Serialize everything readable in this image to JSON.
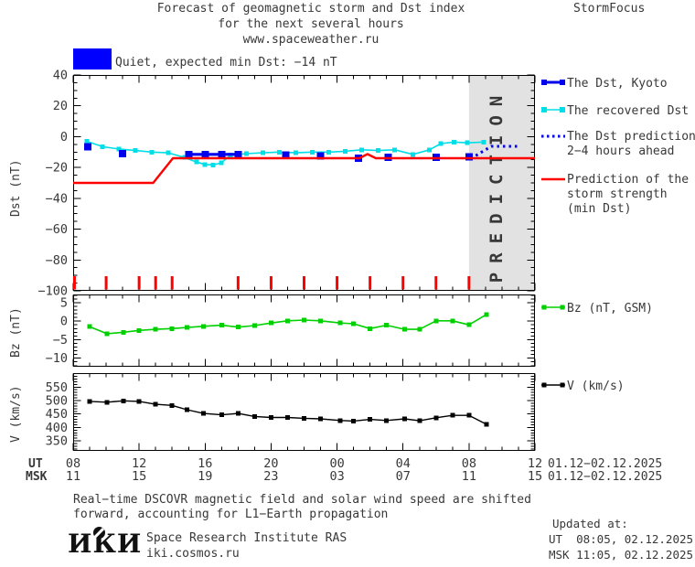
{
  "header": {
    "title_line1": "Forecast of geomagnetic storm and Dst index",
    "title_line2": "for the next several hours",
    "title_line3": "www.spaceweather.ru",
    "brand": "StormFocus"
  },
  "status": {
    "label": "Quiet, expected min Dst: −14 nT",
    "box_color": "#0000ff"
  },
  "legend_main": [
    {
      "label": "The Dst, Kyoto",
      "color": "#0000ee",
      "style": "line-squares"
    },
    {
      "label": "The recovered Dst",
      "color": "#00dfe8",
      "style": "line-squares"
    },
    {
      "label": "The Dst prediction",
      "label2": "2−4 hours ahead",
      "color": "#0000ee",
      "style": "dotted"
    },
    {
      "label": "Prediction of the",
      "label2": "storm strength",
      "label3": "(min Dst)",
      "color": "#ff0000",
      "style": "line"
    }
  ],
  "legend_bz": {
    "label": "Bz (nT, GSM)",
    "color": "#00d000"
  },
  "legend_v": {
    "label": "V (km/s)",
    "color": "#000000"
  },
  "axis": {
    "ut_label": "UT",
    "msk_label": "MSK",
    "ut_ticks": [
      "08",
      "12",
      "16",
      "20",
      "00",
      "04",
      "08",
      "12"
    ],
    "msk_ticks": [
      "11",
      "15",
      "19",
      "23",
      "03",
      "07",
      "11",
      "15"
    ],
    "ut_date": "01.12−02.12.2025",
    "msk_date": "01.12−02.12.2025"
  },
  "footer": {
    "note_line1": "Real−time DSCOVR magnetic field and solar wind speed are shifted",
    "note_line2": "forward, accounting for L1−Earth propagation",
    "logo": "ИКИ",
    "institute": "Space Research Institute RAS",
    "site": "iki.cosmos.ru",
    "updated_label": "Updated at:",
    "updated_ut": "UT  08:05, 02.12.2025",
    "updated_msk": "MSK 11:05, 02.12.2025"
  },
  "chart_data": [
    {
      "type": "line",
      "panel": "dst",
      "ylabel": "Dst (nT)",
      "ylim": [
        -100,
        40
      ],
      "yticks": [
        40,
        20,
        0,
        -20,
        -40,
        -60,
        -80,
        -100
      ],
      "minor_step": 5,
      "xlim_hours": [
        0,
        28
      ],
      "x_start": "08:00 UT 01.12.2025",
      "prediction_band_hours": [
        24,
        28
      ],
      "prediction_label": "PREDICTION",
      "activity_marks_hours": [
        0.08,
        2,
        4,
        5,
        6,
        10,
        12,
        14,
        16,
        18,
        20,
        22,
        24
      ],
      "series": [
        {
          "name": "The recovered Dst",
          "color": "#00dfe8",
          "marker": "square",
          "marker_size": 5,
          "line_width": 1.6,
          "points": [
            [
              0.83,
              -3
            ],
            [
              1.78,
              -6.5
            ],
            [
              2.77,
              -8
            ],
            [
              3.77,
              -9
            ],
            [
              4.77,
              -10
            ],
            [
              5.76,
              -10.5
            ],
            [
              6.76,
              -13.5
            ],
            [
              7.48,
              -16.5
            ],
            [
              7.98,
              -18
            ],
            [
              8.48,
              -18.3
            ],
            [
              8.98,
              -17
            ],
            [
              9.53,
              -12
            ],
            [
              10.5,
              -11
            ],
            [
              11.5,
              -10.5
            ],
            [
              12.5,
              -10
            ],
            [
              13.5,
              -10.5
            ],
            [
              14.5,
              -10
            ],
            [
              15.5,
              -10
            ],
            [
              16.5,
              -9.5
            ],
            [
              17.5,
              -8.5
            ],
            [
              18.5,
              -9
            ],
            [
              19.5,
              -8.5
            ],
            [
              20.6,
              -11.5
            ],
            [
              21.6,
              -8.5
            ],
            [
              22.3,
              -4.5
            ],
            [
              23.1,
              -3.5
            ],
            [
              23.9,
              -4
            ],
            [
              24.9,
              -3.5
            ]
          ]
        },
        {
          "name": "The Dst, Kyoto",
          "color": "#0000ee",
          "marker": "square",
          "marker_size": 8,
          "line_width": 3.2,
          "groups": [
            [
              [
                0.9,
                -6.5
              ]
            ],
            [
              [
                3.0,
                -11
              ]
            ],
            [
              [
                7.0,
                -11.5
              ],
              [
                8.0,
                -11.5
              ],
              [
                9.0,
                -11.5
              ],
              [
                10.0,
                -11.5
              ]
            ],
            [
              [
                12.9,
                -12
              ]
            ],
            [
              [
                15.0,
                -12.5
              ]
            ],
            [
              [
                17.3,
                -14
              ]
            ],
            [
              [
                19.1,
                -13.5
              ]
            ],
            [
              [
                22.0,
                -13.5
              ]
            ],
            [
              [
                24.0,
                -13
              ]
            ]
          ]
        },
        {
          "name": "The Dst prediction 2−4 hours ahead",
          "color": "#0000ee",
          "dash": "2.5 4",
          "line_width": 3,
          "points": [
            [
              24.1,
              -14.3
            ],
            [
              25.35,
              -6.3
            ],
            [
              27.0,
              -6.3
            ]
          ]
        },
        {
          "name": "Prediction of the storm strength (min Dst)",
          "color": "#ff0000",
          "line_width": 2.4,
          "points": [
            [
              0,
              -30
            ],
            [
              4.85,
              -30
            ],
            [
              6.05,
              -14
            ],
            [
              17.35,
              -14
            ],
            [
              17.85,
              -11.3
            ],
            [
              18.35,
              -14
            ],
            [
              28,
              -14
            ]
          ]
        }
      ]
    },
    {
      "type": "line",
      "panel": "bz",
      "ylabel": "Bz (nT)",
      "ylim": [
        -12.3,
        7.2
      ],
      "yticks": [
        5,
        0,
        -5,
        -10
      ],
      "minor_step": 1,
      "series": [
        {
          "name": "Bz (nT, GSM)",
          "color": "#00d000",
          "marker": "square",
          "marker_size": 5,
          "line_width": 1.6,
          "points": [
            [
              1.0,
              -1.5
            ],
            [
              2.05,
              -3.4
            ],
            [
              3.05,
              -3.0
            ],
            [
              4.0,
              -2.5
            ],
            [
              5.0,
              -2.2
            ],
            [
              6.0,
              -2.0
            ],
            [
              6.9,
              -1.7
            ],
            [
              7.9,
              -1.4
            ],
            [
              9.0,
              -1.1
            ],
            [
              10.0,
              -1.6
            ],
            [
              11.0,
              -1.2
            ],
            [
              12.0,
              -0.5
            ],
            [
              13.0,
              0.1
            ],
            [
              14.0,
              0.3
            ],
            [
              15.0,
              0.1
            ],
            [
              16.2,
              -0.5
            ],
            [
              17.0,
              -0.7
            ],
            [
              18.0,
              -2.0
            ],
            [
              19.0,
              -1.1
            ],
            [
              20.1,
              -2.2
            ],
            [
              21.0,
              -2.2
            ],
            [
              22.0,
              0.1
            ],
            [
              23.0,
              0.1
            ],
            [
              24.0,
              -1.0
            ],
            [
              25.05,
              1.8
            ]
          ]
        }
      ]
    },
    {
      "type": "line",
      "panel": "v",
      "ylabel": "V (km/s)",
      "ylim": [
        313,
        602
      ],
      "yticks": [
        550,
        500,
        450,
        400,
        350
      ],
      "minor_step": 10,
      "series": [
        {
          "name": "V (km/s)",
          "color": "#000000",
          "marker": "square",
          "marker_size": 5,
          "line_width": 1.4,
          "points": [
            [
              1.0,
              497
            ],
            [
              2.05,
              494
            ],
            [
              3.05,
              499
            ],
            [
              4.0,
              497
            ],
            [
              5.0,
              486
            ],
            [
              6.0,
              482
            ],
            [
              6.9,
              466
            ],
            [
              7.9,
              452
            ],
            [
              9.0,
              447
            ],
            [
              10.0,
              452
            ],
            [
              11.0,
              441
            ],
            [
              12.0,
              437
            ],
            [
              13.0,
              437
            ],
            [
              14.0,
              434
            ],
            [
              15.0,
              432
            ],
            [
              16.2,
              426
            ],
            [
              17.0,
              424
            ],
            [
              18.0,
              430
            ],
            [
              19.0,
              426
            ],
            [
              20.1,
              432
            ],
            [
              21.0,
              425
            ],
            [
              22.0,
              436
            ],
            [
              23.0,
              445
            ],
            [
              24.0,
              445
            ],
            [
              25.05,
              412
            ]
          ]
        }
      ]
    }
  ]
}
